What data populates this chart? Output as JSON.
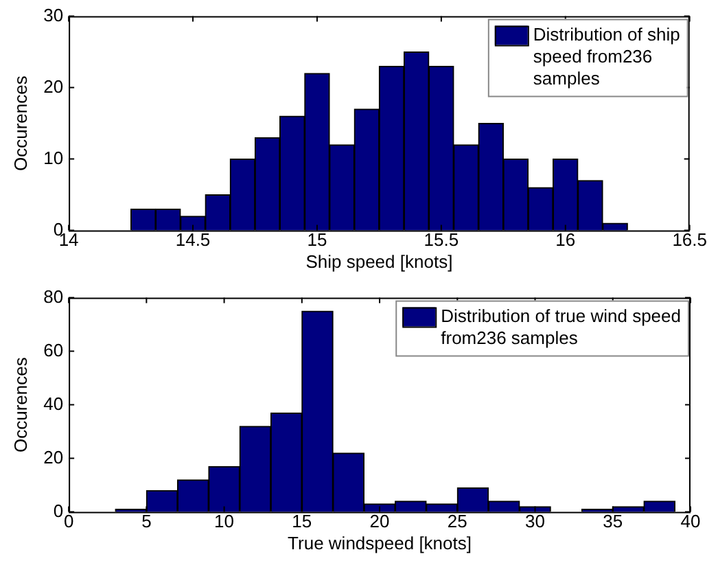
{
  "chart_data": [
    {
      "type": "histogram",
      "xlabel": "Ship speed [knots]",
      "ylabel": "Occurences",
      "bins": [
        14.25,
        14.35,
        14.45,
        14.55,
        14.65,
        14.75,
        14.85,
        14.95,
        15.05,
        15.15,
        15.25,
        15.35,
        15.45,
        15.55,
        15.65,
        15.75,
        15.85,
        15.95,
        16.05,
        16.15,
        16.25
      ],
      "series": [
        {
          "name": "Distribution of ship speed from236 samples",
          "color": "#000080",
          "values": [
            3,
            3,
            2,
            5,
            10,
            13,
            16,
            22,
            12,
            17,
            23,
            25,
            23,
            12,
            15,
            10,
            6,
            10,
            7,
            1
          ]
        }
      ],
      "xlim": [
        14,
        16.5
      ],
      "xticks": [
        14,
        14.5,
        15,
        15.5,
        16,
        16.5
      ],
      "ylim": [
        0,
        30
      ],
      "yticks": [
        0,
        10,
        20,
        30
      ],
      "grid": false,
      "legend": "top right"
    },
    {
      "type": "histogram",
      "xlabel": "True windspeed [knots]",
      "ylabel": "Occurences",
      "bins": [
        3,
        5,
        7,
        9,
        11,
        13,
        15,
        17,
        19,
        21,
        23,
        25,
        27,
        29,
        31,
        33,
        35,
        37,
        39
      ],
      "series": [
        {
          "name": "Distribution of true wind speed from236 samples",
          "color": "#000080",
          "values": [
            1,
            8,
            12,
            17,
            32,
            37,
            75,
            22,
            3,
            4,
            3,
            9,
            4,
            2,
            0,
            1,
            2,
            4
          ]
        }
      ],
      "xlim": [
        0,
        40
      ],
      "xticks": [
        0,
        5,
        10,
        15,
        20,
        25,
        30,
        35,
        40
      ],
      "ylim": [
        0,
        80
      ],
      "yticks": [
        0,
        20,
        40,
        60,
        80
      ],
      "grid": false,
      "legend": "top right"
    }
  ]
}
